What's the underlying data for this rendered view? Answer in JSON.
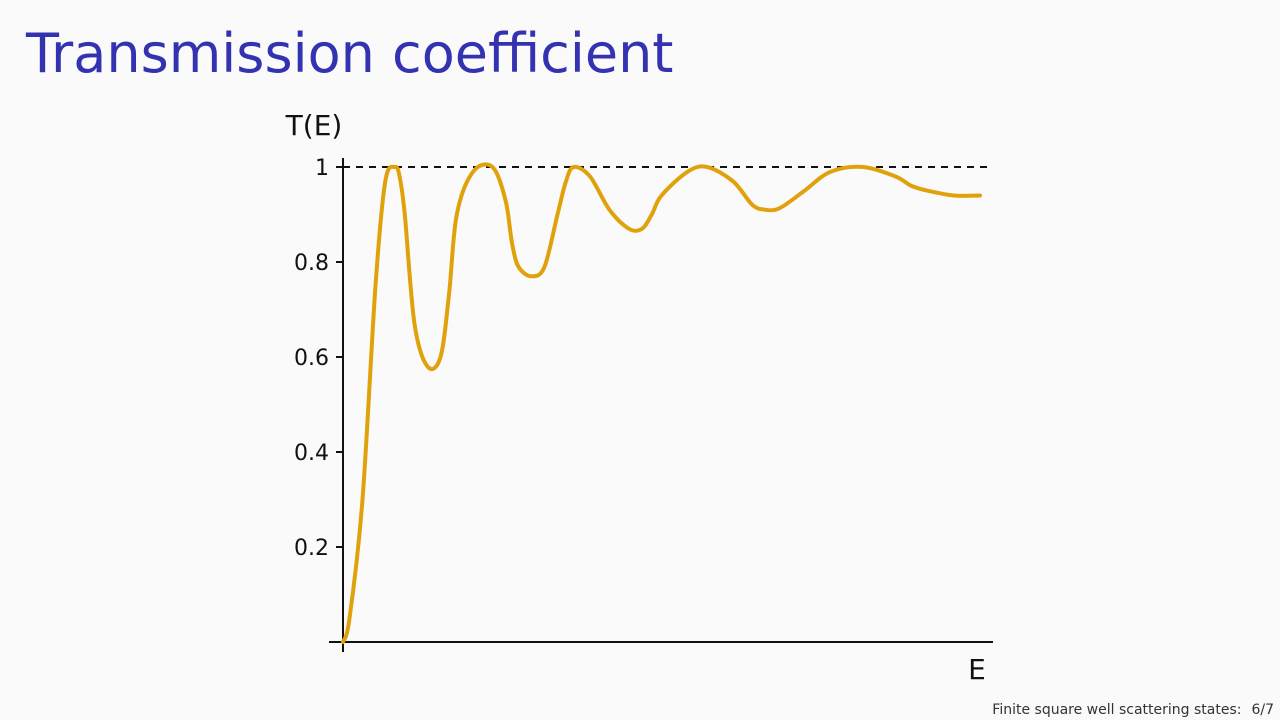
{
  "slide": {
    "title": "Transmission coefficient",
    "footer_title": "Finite square well scattering states:",
    "page": "6/7"
  },
  "colors": {
    "title": "#3333b2",
    "curve": "#e0a20c",
    "axis": "#111111"
  },
  "chart_data": {
    "type": "line",
    "title": "",
    "xlabel": "E",
    "ylabel": "T(E)",
    "xlim": [
      0,
      100
    ],
    "ylim": [
      0,
      1
    ],
    "x_ticks": [],
    "y_ticks": [
      0.2,
      0.4,
      0.6,
      0.8,
      1
    ],
    "y_tick_labels": [
      "0.2",
      "0.4",
      "0.6",
      "0.8",
      "1"
    ],
    "reference_line": {
      "y": 1,
      "style": "dashed"
    },
    "series": [
      {
        "name": "T(E)",
        "x": [
          0,
          1,
          3,
          5,
          6.5,
          8,
          8.7,
          9.5,
          11,
          13,
          15,
          16.3,
          17.5,
          20,
          23,
          25,
          26,
          27,
          29,
          31,
          33,
          34.3,
          35.5,
          38,
          41,
          44,
          46,
          47.5,
          49,
          53,
          56,
          60,
          63,
          65,
          66.5,
          68,
          71,
          75,
          80,
          85,
          87.5,
          90,
          94,
          98
        ],
        "values": [
          0,
          0.05,
          0.3,
          0.75,
          0.97,
          1.0,
          0.98,
          0.9,
          0.67,
          0.58,
          0.6,
          0.73,
          0.9,
          0.99,
          1.0,
          0.93,
          0.84,
          0.79,
          0.77,
          0.79,
          0.9,
          0.97,
          1.0,
          0.98,
          0.91,
          0.87,
          0.87,
          0.9,
          0.94,
          0.99,
          1.0,
          0.97,
          0.92,
          0.91,
          0.91,
          0.92,
          0.95,
          0.99,
          1.0,
          0.98,
          0.96,
          0.95,
          0.94,
          0.94
        ]
      }
    ]
  }
}
